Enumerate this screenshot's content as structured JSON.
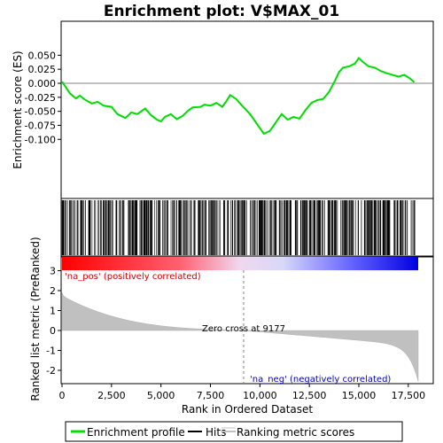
{
  "chart_data": {
    "type": "line",
    "title": "Enrichment plot: V$MAX_01",
    "xlabel": "Rank in Ordered Dataset",
    "ylabel_top": "Enrichment score (ES)",
    "ylabel_bottom": "Ranked list metric (PreRanked)",
    "x_range": [
      0,
      18000
    ],
    "x_ticks": [
      0,
      2500,
      5000,
      7500,
      10000,
      12500,
      15000,
      17500
    ],
    "x_tick_labels": [
      "0",
      "2,500",
      "5,000",
      "7,500",
      "10,000",
      "12,500",
      "15,000",
      "17,500"
    ],
    "es_range": [
      -0.1,
      0.05
    ],
    "es_ticks": [
      0.05,
      0.025,
      0.0,
      -0.025,
      -0.05,
      -0.075,
      -0.1
    ],
    "es_tick_labels": [
      "0.050",
      "0.025",
      "0.000",
      "-0.025",
      "-0.050",
      "-0.075",
      "-0.100"
    ],
    "metric_range": [
      -2.5,
      3
    ],
    "metric_ticks": [
      3,
      2,
      1,
      0,
      -1,
      -2
    ],
    "metric_tick_labels": [
      "3",
      "2",
      "1",
      "0",
      "-1",
      "-2"
    ],
    "enrichment_profile": {
      "x": [
        0,
        400,
        700,
        900,
        1100,
        1500,
        1800,
        2100,
        2500,
        2800,
        3200,
        3500,
        3800,
        4200,
        4500,
        4800,
        5000,
        5200,
        5500,
        5800,
        6100,
        6400,
        6600,
        7000,
        7200,
        7500,
        7800,
        8100,
        8300,
        8500,
        8800,
        9100,
        9500,
        9900,
        10200,
        10500,
        10700,
        10900,
        11100,
        11400,
        11700,
        12000,
        12300,
        12600,
        12900,
        13200,
        13500,
        13800,
        14000,
        14200,
        14500,
        14800,
        15000,
        15200,
        15500,
        15800,
        16100,
        16400,
        16700,
        17000,
        17300,
        17600,
        17800
      ],
      "es": [
        0.003,
        -0.018,
        -0.027,
        -0.022,
        -0.028,
        -0.036,
        -0.033,
        -0.04,
        -0.042,
        -0.055,
        -0.062,
        -0.052,
        -0.055,
        -0.045,
        -0.057,
        -0.065,
        -0.068,
        -0.06,
        -0.055,
        -0.064,
        -0.058,
        -0.048,
        -0.043,
        -0.042,
        -0.038,
        -0.04,
        -0.035,
        -0.042,
        -0.032,
        -0.021,
        -0.028,
        -0.04,
        -0.055,
        -0.075,
        -0.09,
        -0.085,
        -0.075,
        -0.065,
        -0.055,
        -0.065,
        -0.06,
        -0.063,
        -0.048,
        -0.035,
        -0.03,
        -0.028,
        -0.015,
        0.005,
        0.02,
        0.028,
        0.03,
        0.035,
        0.045,
        0.038,
        0.03,
        0.028,
        0.022,
        0.018,
        0.015,
        0.012,
        0.015,
        0.008,
        0.002
      ]
    },
    "zero_cross_label": "Zero cross at 9177",
    "zero_cross_rank": 9177,
    "pos_label": "'na_pos' (positively correlated)",
    "neg_label": "'na_neg' (negatively correlated)",
    "colors": {
      "profile": "#00dd00",
      "metric_fill": "#c0c0c0",
      "pos_label": "#cc0000",
      "neg_label": "#0000cc",
      "zero_line": "#808080"
    },
    "legend": {
      "placement": "bottom",
      "items": [
        {
          "label": "Enrichment profile",
          "kind": "profile"
        },
        {
          "label": "Hits",
          "kind": "hits"
        },
        {
          "label": "Ranking metric scores",
          "kind": "metric"
        }
      ]
    }
  }
}
